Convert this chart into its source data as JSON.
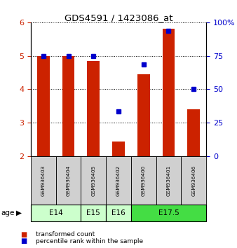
{
  "title": "GDS4591 / 1423086_at",
  "samples": [
    "GSM936403",
    "GSM936404",
    "GSM936405",
    "GSM936402",
    "GSM936400",
    "GSM936401",
    "GSM936406"
  ],
  "red_values": [
    5.0,
    5.0,
    4.85,
    2.45,
    4.45,
    5.8,
    3.4
  ],
  "blue_values_pct": [
    75,
    75,
    75,
    33.75,
    68.5,
    93.75,
    50
  ],
  "ylim_left": [
    2,
    6
  ],
  "ylim_right": [
    0,
    100
  ],
  "yticks_left": [
    2,
    3,
    4,
    5,
    6
  ],
  "yticks_right": [
    0,
    25,
    50,
    75,
    100
  ],
  "yticklabels_right": [
    "0",
    "25",
    "50",
    "75",
    "100%"
  ],
  "bar_color": "#cc2200",
  "dot_color": "#0000cc",
  "legend_bar_label": "transformed count",
  "legend_dot_label": "percentile rank within the sample",
  "age_label": "age",
  "left_tick_color": "#cc2200",
  "right_tick_color": "#0000cc",
  "bar_bottom": 2.0,
  "bar_width": 0.5,
  "group_labels": [
    "E14",
    "E15",
    "E16",
    "E17.5"
  ],
  "group_starts": [
    0,
    2,
    3,
    4
  ],
  "group_ends": [
    2,
    3,
    4,
    7
  ],
  "group_colors": [
    "#ccffcc",
    "#ccffcc",
    "#ccffcc",
    "#44dd44"
  ],
  "sample_box_color": "#d0d0d0",
  "plot_bg_color": "#ffffff"
}
